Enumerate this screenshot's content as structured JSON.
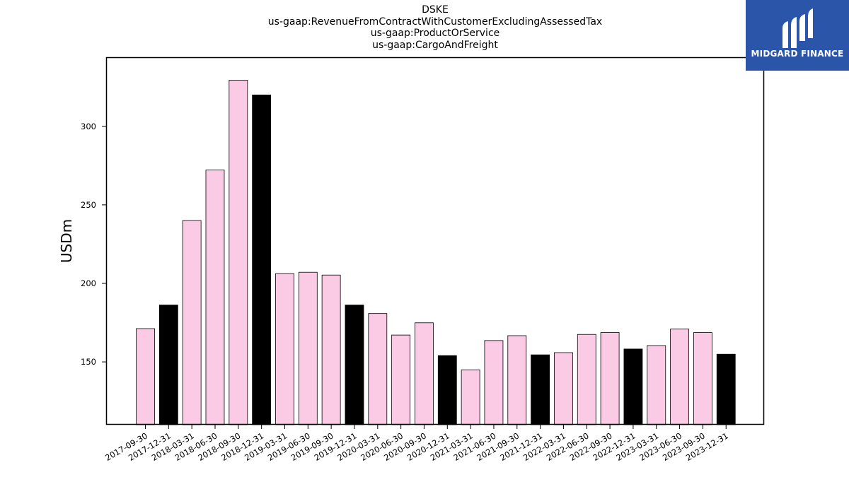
{
  "chart_data": {
    "type": "bar",
    "title_lines": [
      "DSKE",
      "us-gaap:RevenueFromContractWithCustomerExcludingAssessedTax",
      "us-gaap:ProductOrService",
      "us-gaap:CargoAndFreight"
    ],
    "ylabel": "USDm",
    "xlabel": "",
    "ylim": [
      110,
      344
    ],
    "yticks": [
      150,
      200,
      250,
      300
    ],
    "grid": false,
    "categories": [
      "2017-09-30",
      "2017-12-31",
      "2018-03-31",
      "2018-06-30",
      "2018-09-30",
      "2018-12-31",
      "2019-03-31",
      "2019-06-30",
      "2019-09-30",
      "2019-12-31",
      "2020-03-31",
      "2020-06-30",
      "2020-09-30",
      "2020-12-31",
      "2021-03-31",
      "2021-06-30",
      "2021-09-30",
      "2021-12-31",
      "2022-03-31",
      "2022-06-30",
      "2022-09-30",
      "2022-12-31",
      "2023-03-31",
      "2023-06-30",
      "2023-09-30",
      "2023-12-31"
    ],
    "values": [
      171.2,
      186.2,
      240.0,
      272.2,
      329.4,
      320.0,
      206.2,
      207.1,
      205.3,
      186.2,
      180.8,
      167.1,
      174.9,
      154.0,
      144.9,
      163.6,
      166.7,
      154.5,
      155.9,
      167.5,
      168.7,
      158.2,
      160.4,
      170.9,
      168.7,
      154.9
    ],
    "bar_colors": [
      "#fbcbe5",
      "#000000",
      "#fbcbe5",
      "#fbcbe5",
      "#fbcbe5",
      "#000000",
      "#fbcbe5",
      "#fbcbe5",
      "#fbcbe5",
      "#000000",
      "#fbcbe5",
      "#fbcbe5",
      "#fbcbe5",
      "#000000",
      "#fbcbe5",
      "#fbcbe5",
      "#fbcbe5",
      "#000000",
      "#fbcbe5",
      "#fbcbe5",
      "#fbcbe5",
      "#000000",
      "#fbcbe5",
      "#fbcbe5",
      "#fbcbe5",
      "#000000"
    ]
  },
  "logo": {
    "text": "MIDGARD FINANCE",
    "background": "#2a55a8"
  }
}
